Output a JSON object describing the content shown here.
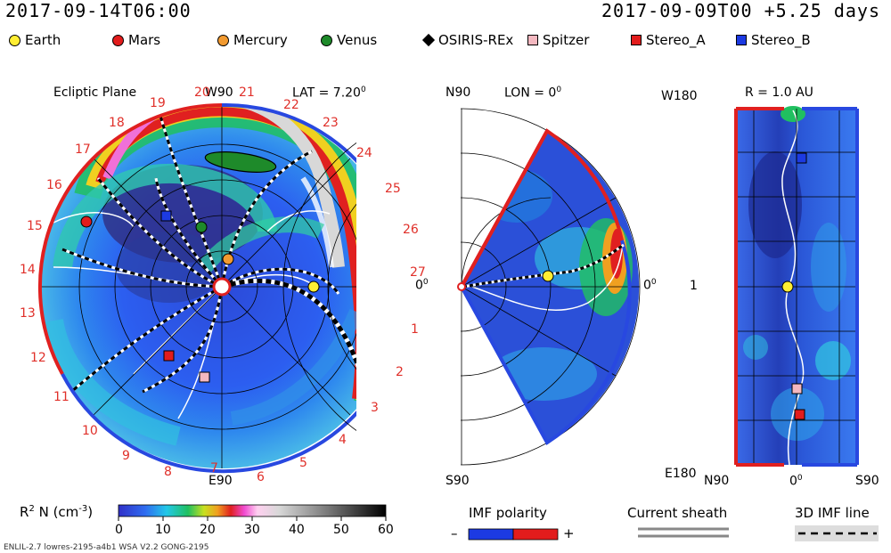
{
  "header": {
    "sim_time": "2017-09-14T06:00",
    "run_info": "2017-09-09T00 +5.25 days"
  },
  "legend": [
    {
      "label": "Earth",
      "color": "#ffee33",
      "shape": "circle"
    },
    {
      "label": "Mars",
      "color": "#e21c1c",
      "shape": "circle"
    },
    {
      "label": "Mercury",
      "color": "#f29a30",
      "shape": "circle"
    },
    {
      "label": "Venus",
      "color": "#1e8a2a",
      "shape": "circle"
    },
    {
      "label": "OSIRIS-REx",
      "color": "#000000",
      "shape": "diamond"
    },
    {
      "label": "Spitzer",
      "color": "#f4b8c0",
      "shape": "square"
    },
    {
      "label": "Stereo_A",
      "color": "#e21c1c",
      "shape": "square"
    },
    {
      "label": "Stereo_B",
      "color": "#1c3ae2",
      "shape": "square"
    }
  ],
  "ecliptic": {
    "title": "Ecliptic Plane",
    "top_label": "W90",
    "lat_label": "LAT = 7.20",
    "lat_deg": "0",
    "bottom_label": "E90",
    "right_label": "0",
    "right_deg": "0",
    "sector_numbers": [
      "1",
      "2",
      "3",
      "4",
      "5",
      "6",
      "7",
      "8",
      "9",
      "10",
      "11",
      "12",
      "13",
      "14",
      "15",
      "16",
      "17",
      "18",
      "19",
      "20",
      "21",
      "22",
      "23",
      "24",
      "25",
      "26",
      "27"
    ]
  },
  "meridional": {
    "top_label": "N90",
    "lon_label": "LON = 0",
    "lon_deg": "0",
    "bottom_label": "S90",
    "right_label": "0",
    "right_deg": "0"
  },
  "sphere": {
    "top_left": "W180",
    "radius_label": "R = 1.0 AU",
    "mid_left": "1",
    "bottom_left": "E180",
    "bottom_axis": [
      "N90",
      "0",
      "S90"
    ],
    "bottom_axis_deg": "0"
  },
  "colorbar": {
    "label": "R",
    "label_sup": "2",
    "label_rest": " N (cm",
    "label_unit_sup": "-3",
    "label_end": ")",
    "ticks": [
      "0",
      "10",
      "20",
      "30",
      "40",
      "50",
      "60"
    ]
  },
  "imf_polarity": {
    "title": "IMF polarity",
    "minus": "–",
    "plus": "+"
  },
  "current_sheath": {
    "title": "Current sheath"
  },
  "imf_line": {
    "title": "3D IMF line"
  },
  "footer": "ENLIL-2.7 lowres-2195-a4b1 WSA V2.2 GONG-2195"
}
